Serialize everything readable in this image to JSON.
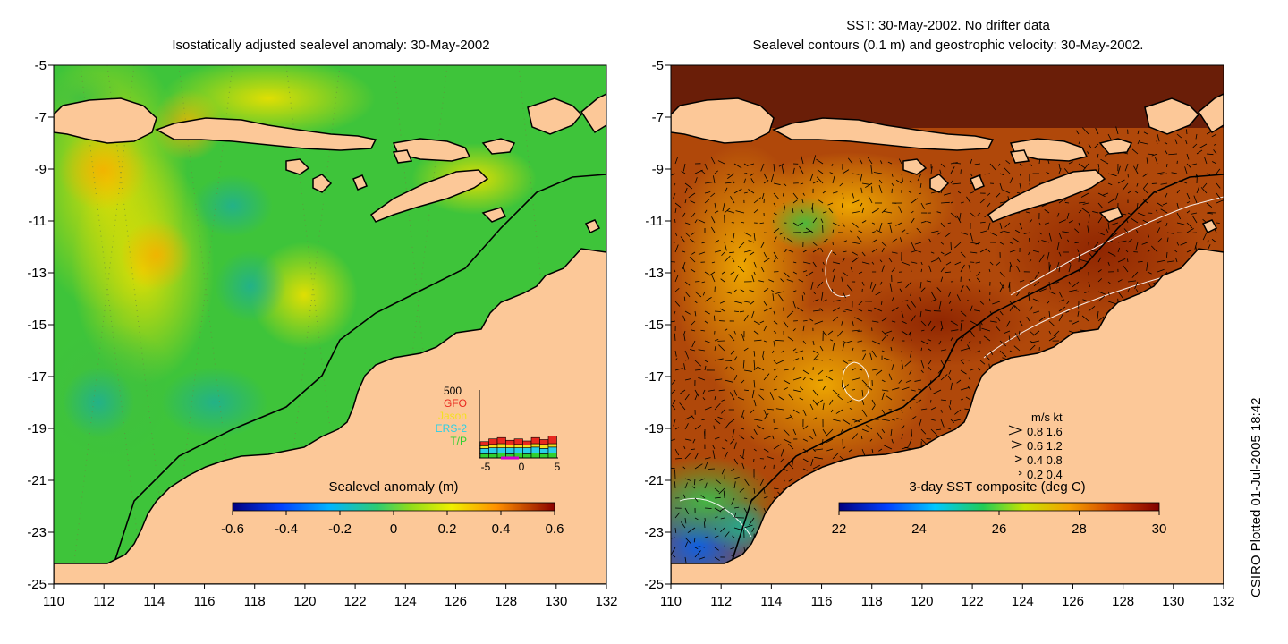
{
  "left_panel": {
    "title": "Isostatically adjusted sealevel anomaly: 30-May-2002",
    "colorbar": {
      "label": "Sealevel anomaly (m)",
      "ticks": [
        "-0.6",
        "-0.4",
        "-0.2",
        "0",
        "0.2",
        "0.4",
        "0.6"
      ],
      "range": [
        -0.6,
        0.6
      ]
    },
    "inset": {
      "ymax_label": "500",
      "legend": [
        {
          "name": "GFO",
          "color": "#e8281e"
        },
        {
          "name": "Jason",
          "color": "#f4e020"
        },
        {
          "name": "ERS-2",
          "color": "#28d0e8"
        },
        {
          "name": "T/P",
          "color": "#30d030"
        }
      ],
      "xticks": [
        "-5",
        "0",
        "5"
      ],
      "bars": [
        {
          "GFO": 30,
          "Jason": 20,
          "ERS": 40,
          "TP": 30
        },
        {
          "GFO": 40,
          "Jason": 25,
          "ERS": 45,
          "TP": 30
        },
        {
          "GFO": 45,
          "Jason": 30,
          "ERS": 40,
          "TP": 35
        },
        {
          "GFO": 35,
          "Jason": 20,
          "ERS": 45,
          "TP": 30
        },
        {
          "GFO": 40,
          "Jason": 25,
          "ERS": 40,
          "TP": 35
        },
        {
          "GFO": 30,
          "Jason": 20,
          "ERS": 45,
          "TP": 30
        },
        {
          "GFO": 45,
          "Jason": 25,
          "ERS": 45,
          "TP": 35
        },
        {
          "GFO": 35,
          "Jason": 30,
          "ERS": 40,
          "TP": 30
        },
        {
          "GFO": 55,
          "Jason": 25,
          "ERS": 45,
          "TP": 35
        }
      ]
    }
  },
  "right_panel": {
    "title_line1": "SST: 30-May-2002. No drifter data",
    "title_line2": "Sealevel contours (0.1 m) and geostrophic velocity: 30-May-2002.",
    "colorbar": {
      "label": "3-day SST composite (deg C)",
      "ticks": [
        "22",
        "24",
        "26",
        "28",
        "30"
      ],
      "range": [
        22,
        30
      ]
    },
    "velocity_legend": {
      "header": "m/s  kt",
      "rows": [
        "0.8  1.6",
        "0.6  1.2",
        "0.4  0.8",
        "0.2  0.4"
      ]
    }
  },
  "axes": {
    "x_ticks": [
      "110",
      "112",
      "114",
      "116",
      "118",
      "120",
      "122",
      "124",
      "126",
      "128",
      "130",
      "132"
    ],
    "y_ticks": [
      "-5",
      "-7",
      "-9",
      "-11",
      "-13",
      "-15",
      "-17",
      "-19",
      "-21",
      "-23",
      "-25"
    ],
    "x_range": [
      110,
      132
    ],
    "y_range": [
      -25,
      -5
    ]
  },
  "credit": "CSIRO Plotted 01-Jul-2005 18:42",
  "colors": {
    "land": "#fcc898",
    "ocean_anomaly": "#3ec43a",
    "ocean_sst": "#b0480a"
  }
}
